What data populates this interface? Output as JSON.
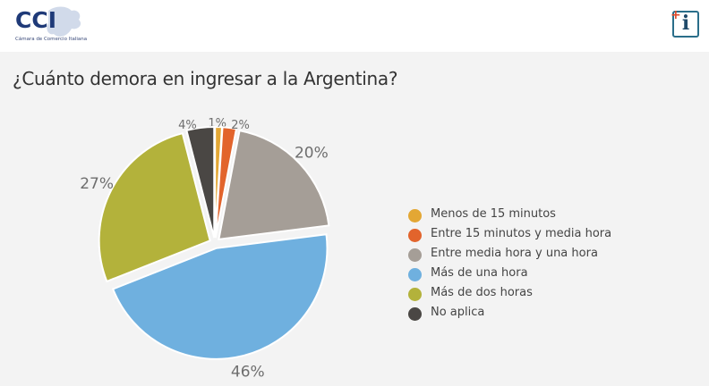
{
  "header": {
    "logo_text": "CCI",
    "logo_subtext": "Cámara de Comercio Italiana",
    "info_icon": "plus-info-icon",
    "info_plus": "+",
    "info_letter": "i"
  },
  "chart_data": {
    "type": "pie",
    "title": "¿Cuánto demora en ingresar a la Argentina?",
    "labels": [
      "Menos de 15 minutos",
      "Entre 15 minutos y media hora",
      "Entre media hora y una hora",
      "Más de una hora",
      "Más de dos horas",
      "No aplica"
    ],
    "values": [
      1,
      2,
      20,
      46,
      27,
      4
    ],
    "value_labels": [
      "1%",
      "2%",
      "20%",
      "46%",
      "27%",
      "4%"
    ],
    "colors": [
      "#e3a734",
      "#e2642c",
      "#a59e97",
      "#6fb0df",
      "#b3b23b",
      "#4a4744"
    ],
    "exploded": true,
    "legend_position": "right"
  }
}
